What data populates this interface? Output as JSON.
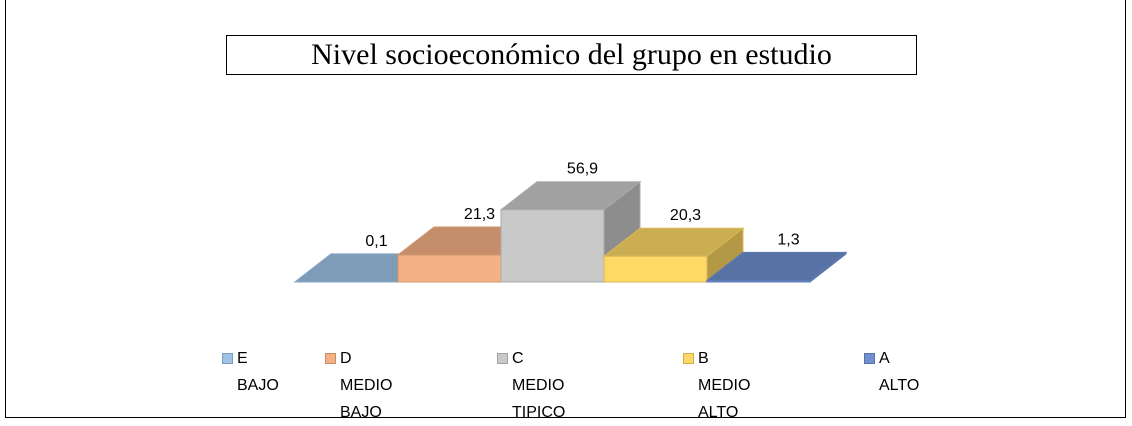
{
  "chart_data": {
    "type": "bar3d",
    "title": "Nivel socioeconómico del grupo en estudio",
    "series": [
      {
        "name": "E\nBAJO",
        "color": "#9dc3e6",
        "values": [
          0.1
        ],
        "value_labels": [
          "0,1"
        ]
      },
      {
        "name": "D\nMEDIO BAJO",
        "color": "#f4b183",
        "values": [
          21.3
        ],
        "value_labels": [
          "21,3"
        ]
      },
      {
        "name": "C\nMEDIO TIPICO",
        "color": "#c9c9c9",
        "values": [
          56.9
        ],
        "value_labels": [
          "56,9"
        ]
      },
      {
        "name": "B\nMEDIO ALTO",
        "color": "#ffd966",
        "values": [
          20.3
        ],
        "value_labels": [
          "20,3"
        ]
      },
      {
        "name": "A\nALTO",
        "color": "#6f8fd0",
        "values": [
          1.3
        ],
        "value_labels": [
          "1,3"
        ]
      }
    ]
  }
}
